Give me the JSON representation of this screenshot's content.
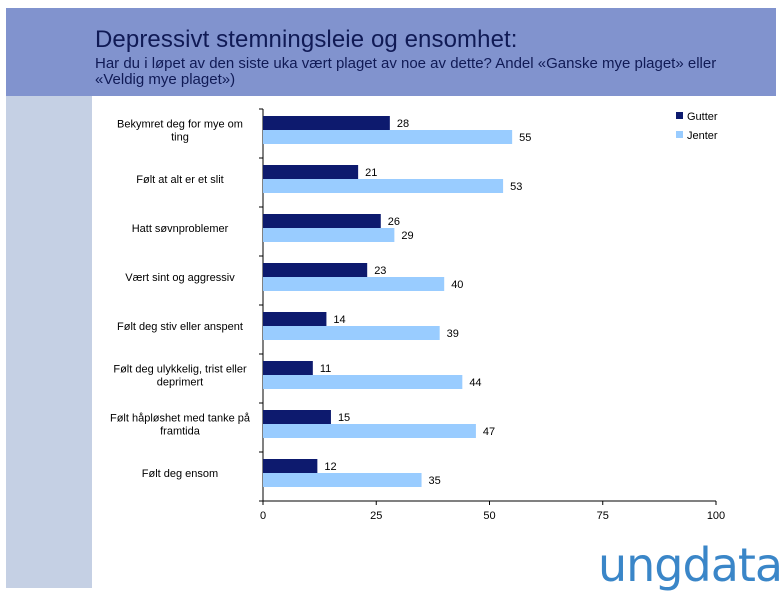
{
  "title": "Depressivt stemningsleie og ensomhet:",
  "subtitle": "Har du i løpet av den siste uka vært plaget av noe av dette? Andel «Ganske mye plaget» eller «Veldig mye plaget»)",
  "logo_text": "ungdata",
  "colors": {
    "gutter": "#0d1a6e",
    "jenter": "#99ccff",
    "header": "#8193ce",
    "sidebar": "#c5d0e4",
    "logo": "#3a86c8"
  },
  "chart_data": {
    "type": "bar",
    "orientation": "horizontal",
    "categories": [
      "Bekymret deg for mye om ting",
      "Følt at alt er et slit",
      "Hatt søvnproblemer",
      "Vært sint og aggressiv",
      "Følt deg stiv eller anspent",
      "Følt deg ulykkelig, trist eller deprimert",
      "Følt håpløshet med tanke på framtida",
      "Følt deg ensom"
    ],
    "category_lines": [
      [
        "Bekymret deg for mye om",
        "ting"
      ],
      [
        "Følt at alt er et slit"
      ],
      [
        "Hatt søvnproblemer"
      ],
      [
        "Vært sint og aggressiv"
      ],
      [
        "Følt deg stiv eller anspent"
      ],
      [
        "Følt deg ulykkelig, trist eller",
        "deprimert"
      ],
      [
        "Følt håpløshet med tanke på",
        "framtida"
      ],
      [
        "Følt deg ensom"
      ]
    ],
    "series": [
      {
        "name": "Gutter",
        "values": [
          28,
          21,
          26,
          23,
          14,
          11,
          15,
          12
        ]
      },
      {
        "name": "Jenter",
        "values": [
          55,
          53,
          29,
          40,
          39,
          44,
          47,
          35
        ]
      }
    ],
    "xlim": [
      0,
      100
    ],
    "xticks": [
      0,
      25,
      50,
      75,
      100
    ],
    "legend_position": "top-right",
    "grid": false
  }
}
